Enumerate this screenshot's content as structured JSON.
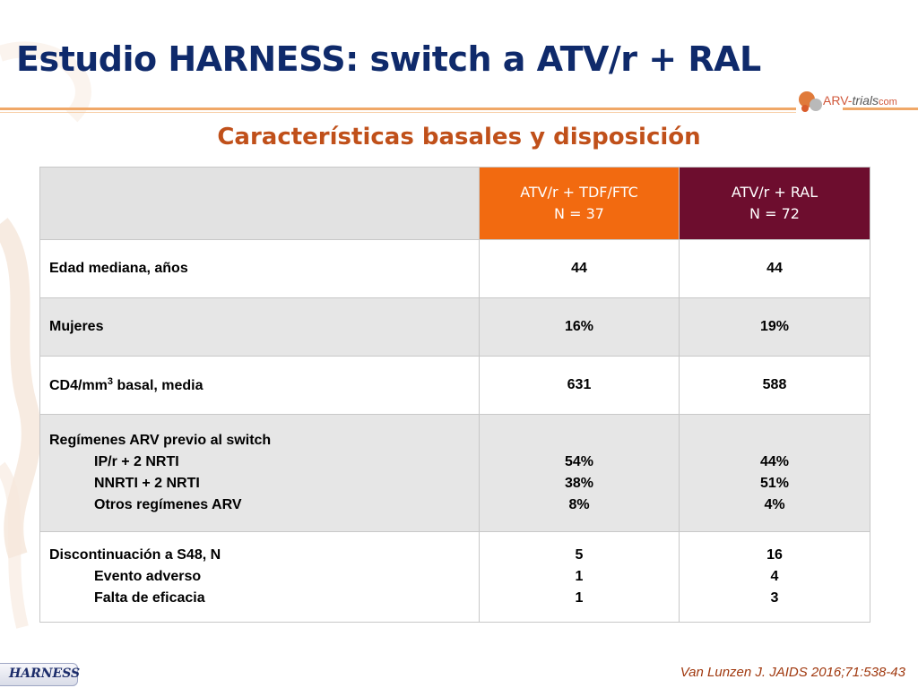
{
  "slide": {
    "title": "Estudio HARNESS: switch a ATV/r + RAL",
    "subtitle": "Características basales y disposición",
    "logo": {
      "brand": "ARV-",
      "trials": "trials",
      "com": "com"
    },
    "badge": "HARNESS",
    "citation": "Van Lunzen J. JAIDS 2016;71:538-43"
  },
  "table": {
    "columns": [
      {
        "line1": "ATV/r + TDF/FTC",
        "line2": "N = 37"
      },
      {
        "line1": "ATV/r + RAL",
        "line2": "N = 72"
      }
    ],
    "rows": {
      "age": {
        "label": "Edad mediana, años",
        "a": "44",
        "b": "44"
      },
      "women": {
        "label": "Mujeres",
        "a": "16%",
        "b": "19%"
      },
      "cd4": {
        "label_pre": "CD4/mm",
        "label_sup": "3",
        "label_post": " basal, media",
        "a": "631",
        "b": "588"
      },
      "regimens": {
        "label": "Regímenes ARV previo al switch",
        "items": [
          {
            "label": "IP/r + 2 NRTI",
            "a": "54%",
            "b": "44%"
          },
          {
            "label": "NNRTI + 2 NRTI",
            "a": "38%",
            "b": "51%"
          },
          {
            "label": "Otros regímenes ARV",
            "a": "8%",
            "b": "4%"
          }
        ]
      },
      "discontinuation": {
        "label": "Discontinuación a S48, N",
        "a": "5",
        "b": "16",
        "items": [
          {
            "label": "Evento adverso",
            "a": "1",
            "b": "4"
          },
          {
            "label": "Falta de eficacia",
            "a": "1",
            "b": "3"
          }
        ]
      }
    }
  },
  "colors": {
    "title": "#0f2a6b",
    "subtitle": "#c0501a",
    "header_a": "#f26a10",
    "header_b": "#6d0d2e",
    "row_shade": "#e6e6e6"
  }
}
